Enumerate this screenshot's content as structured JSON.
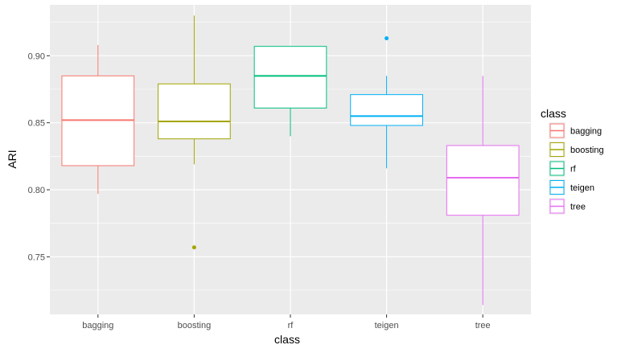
{
  "chart_data": {
    "type": "boxplot",
    "title": "",
    "xlabel": "class",
    "ylabel": "ARI",
    "ylim": [
      0.707,
      0.938
    ],
    "yticks": [
      0.75,
      0.8,
      0.85,
      0.9
    ],
    "ytick_labels": [
      "0.75",
      "0.80",
      "0.85",
      "0.90"
    ],
    "grid": true,
    "legend": {
      "title": "class",
      "position": "right"
    },
    "categories": [
      "bagging",
      "boosting",
      "rf",
      "teigen",
      "tree"
    ],
    "series": [
      {
        "name": "bagging",
        "color": "#F8766D",
        "whisker_low": 0.797,
        "q1": 0.818,
        "median": 0.852,
        "q3": 0.885,
        "whisker_high": 0.908,
        "outliers": []
      },
      {
        "name": "boosting",
        "color": "#A3A500",
        "whisker_low": 0.819,
        "q1": 0.838,
        "median": 0.851,
        "q3": 0.879,
        "whisker_high": 0.93,
        "outliers": [
          0.757
        ]
      },
      {
        "name": "rf",
        "color": "#00BF7D",
        "whisker_low": 0.84,
        "q1": 0.861,
        "median": 0.885,
        "q3": 0.907,
        "whisker_high": 0.907,
        "outliers": []
      },
      {
        "name": "teigen",
        "color": "#00B0F6",
        "whisker_low": 0.816,
        "q1": 0.848,
        "median": 0.855,
        "q3": 0.871,
        "whisker_high": 0.885,
        "outliers": [
          0.913
        ]
      },
      {
        "name": "tree",
        "color": "#E76BF3",
        "whisker_low": 0.714,
        "q1": 0.781,
        "median": 0.809,
        "q3": 0.833,
        "whisker_high": 0.885,
        "outliers": []
      }
    ]
  }
}
